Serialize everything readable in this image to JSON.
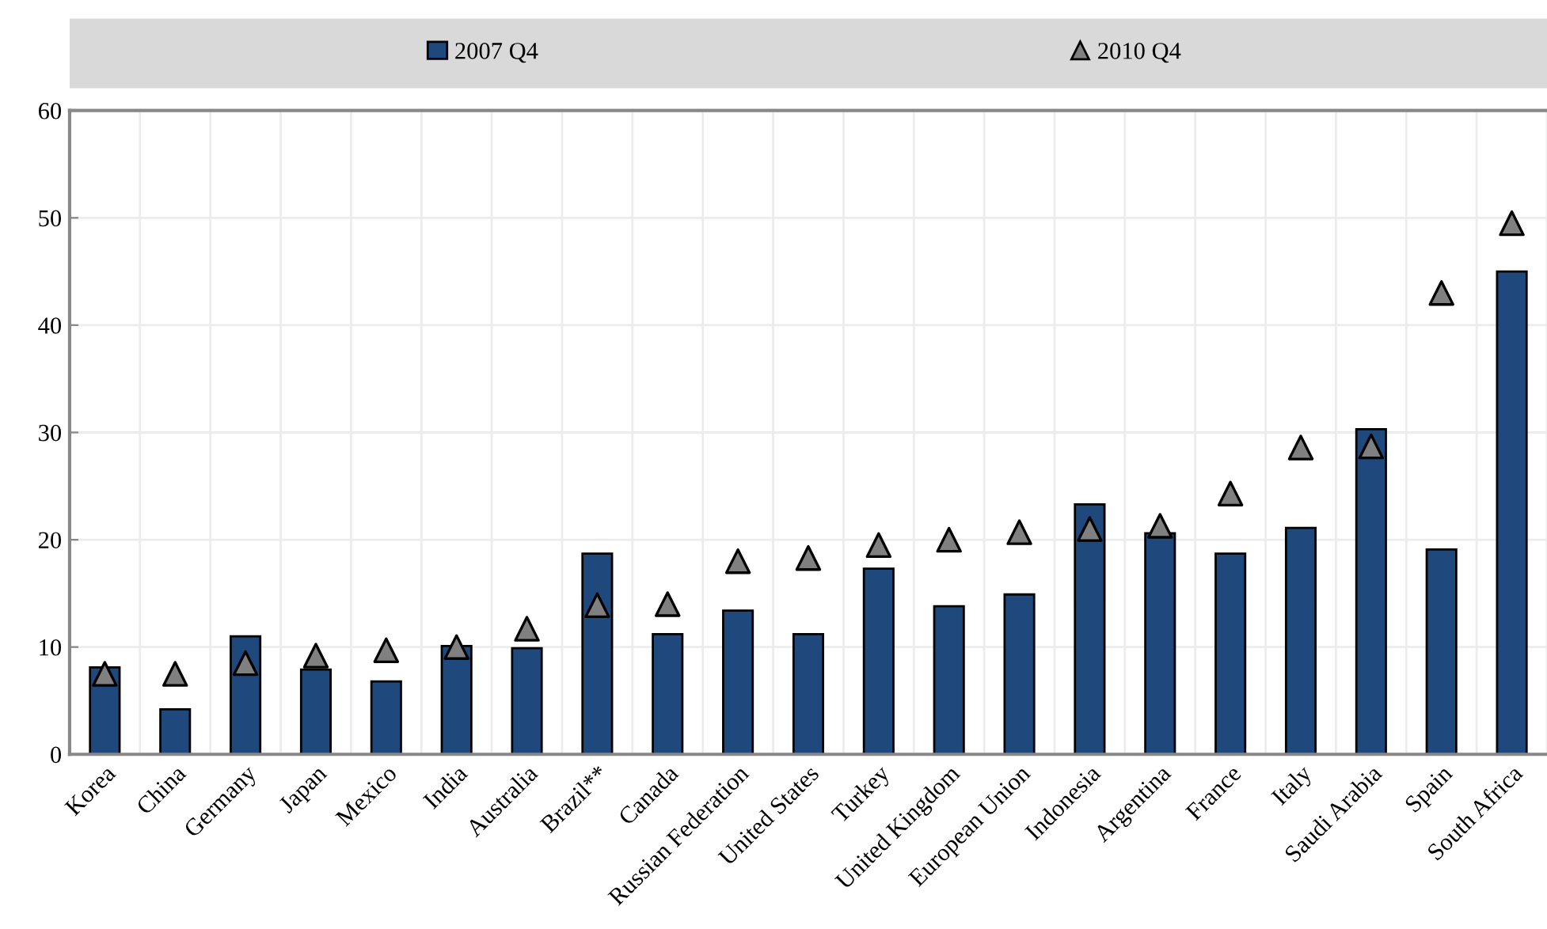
{
  "chart_data": {
    "type": "bar",
    "categories": [
      "Korea",
      "China",
      "Germany",
      "Japan",
      "Mexico",
      "India",
      "Australia",
      "Brazil**",
      "Canada",
      "Russian Federation",
      "United States",
      "Turkey",
      "United Kingdom",
      "European Union",
      "Indonesia",
      "Argentina",
      "France",
      "Italy",
      "Saudi Arabia",
      "Spain",
      "South Africa"
    ],
    "series": [
      {
        "name": "2007 Q4",
        "color": "#1f497d",
        "values": [
          8.1,
          4.2,
          11.0,
          7.9,
          6.8,
          10.1,
          9.9,
          18.7,
          11.2,
          13.4,
          11.2,
          17.3,
          13.8,
          14.9,
          23.3,
          20.6,
          18.7,
          21.1,
          30.3,
          19.1,
          45.0
        ]
      },
      {
        "name": "2010 Q4",
        "type": "scatter",
        "color": "#808080",
        "marker": "triangle",
        "values": [
          7.5,
          7.5,
          8.5,
          9.2,
          9.7,
          10.0,
          11.7,
          13.9,
          14.0,
          18.0,
          18.3,
          19.5,
          20.0,
          20.7,
          21.0,
          21.3,
          24.3,
          28.6,
          28.7,
          43.0,
          49.5
        ]
      }
    ],
    "ylim": [
      0,
      60
    ],
    "yticks": [
      0,
      10,
      20,
      30,
      40,
      50,
      60
    ],
    "grid": true,
    "legend": "top"
  }
}
